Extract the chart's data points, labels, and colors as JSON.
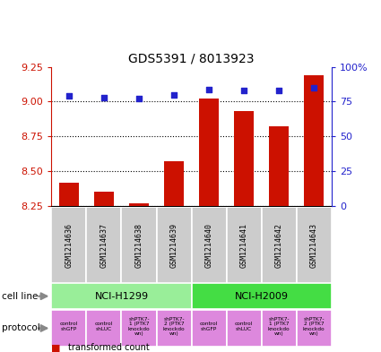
{
  "title": "GDS5391 / 8013923",
  "samples": [
    "GSM1214636",
    "GSM1214637",
    "GSM1214638",
    "GSM1214639",
    "GSM1214640",
    "GSM1214641",
    "GSM1214642",
    "GSM1214643"
  ],
  "transformed_counts": [
    8.42,
    8.35,
    8.27,
    8.57,
    9.02,
    8.93,
    8.82,
    9.19
  ],
  "percentile_ranks": [
    79,
    78,
    77,
    80,
    84,
    83,
    83,
    85
  ],
  "percentile_scale": [
    0,
    25,
    50,
    75,
    100
  ],
  "y_min": 8.25,
  "y_max": 9.25,
  "y_ticks": [
    8.25,
    8.5,
    8.75,
    9.0,
    9.25
  ],
  "bar_color": "#cc1100",
  "dot_color": "#2222cc",
  "cell_lines": [
    {
      "label": "NCI-H1299",
      "start": 0,
      "end": 4,
      "color": "#99ee99"
    },
    {
      "label": "NCI-H2009",
      "start": 4,
      "end": 8,
      "color": "#44dd44"
    }
  ],
  "protocols": [
    {
      "label": "control\nshGFP"
    },
    {
      "label": "control\nshLUC"
    },
    {
      "label": "shPTK7-\n1 (PTK7\nknockdo\nwn)"
    },
    {
      "label": "shPTK7-\n2 (PTK7\nknockdo\nwn)"
    },
    {
      "label": "control\nshGFP"
    },
    {
      "label": "control\nshLUC"
    },
    {
      "label": "shPTK7-\n1 (PTK7\nknockdo\nwn)"
    },
    {
      "label": "shPTK7-\n2 (PTK7\nknockdo\nwn)"
    }
  ],
  "protocol_color": "#dd88dd",
  "gsm_bg_color": "#cccccc",
  "left_axis_color": "#cc1100",
  "right_axis_color": "#2222cc",
  "arrow_color": "#888888"
}
